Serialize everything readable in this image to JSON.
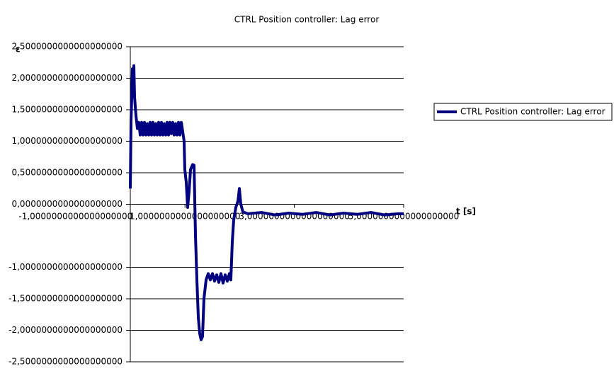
{
  "chart_data": {
    "type": "line",
    "title": "CTRL Position controller: Lag error",
    "y_label": "ε",
    "x_label": "t [s]",
    "x": [
      0,
      0.013,
      0.026,
      0.039,
      0.052,
      0.065,
      0.078,
      0.104,
      0.13,
      0.155,
      0.181,
      0.207,
      0.233,
      0.259,
      0.285,
      0.311,
      0.337,
      0.363,
      0.389,
      0.415,
      0.44,
      0.466,
      0.492,
      0.518,
      0.544,
      0.57,
      0.596,
      0.622,
      0.648,
      0.674,
      0.699,
      0.725,
      0.751,
      0.777,
      0.803,
      0.829,
      0.855,
      0.881,
      0.907,
      0.933,
      0.959,
      0.984,
      0.997,
      1.023,
      1.049,
      1.075,
      1.101,
      1.14,
      1.166,
      1.192,
      1.218,
      1.244,
      1.269,
      1.295,
      1.321,
      1.347,
      1.386,
      1.425,
      1.464,
      1.503,
      1.541,
      1.58,
      1.619,
      1.658,
      1.697,
      1.736,
      1.775,
      1.813,
      1.839,
      1.865,
      1.891,
      1.93,
      1.969,
      1.995,
      2.021,
      2.06,
      2.15,
      2.4,
      2.65,
      2.9,
      3.15,
      3.4,
      3.65,
      3.9,
      4.15,
      4.4,
      4.65,
      4.9,
      5
    ],
    "series": [
      {
        "name": "CTRL Position controller: Lag error",
        "color": "#000080",
        "values": [
          0.25,
          1.3,
          1.7,
          2.15,
          1.8,
          2.2,
          1.7,
          1.4,
          1.2,
          1.3,
          1.1,
          1.3,
          1.1,
          1.3,
          1.1,
          1.28,
          1.1,
          1.3,
          1.1,
          1.3,
          1.1,
          1.28,
          1.1,
          1.3,
          1.1,
          1.3,
          1.1,
          1.28,
          1.1,
          1.3,
          1.1,
          1.3,
          1.12,
          1.3,
          1.1,
          1.28,
          1.1,
          1.3,
          1.1,
          1.3,
          1.15,
          1.0,
          0.55,
          0.35,
          -0.05,
          0.2,
          0.55,
          0.63,
          0.62,
          -0.5,
          -1.2,
          -1.8,
          -2.05,
          -2.15,
          -2.1,
          -1.5,
          -1.2,
          -1.1,
          -1.2,
          -1.1,
          -1.22,
          -1.12,
          -1.24,
          -1.1,
          -1.25,
          -1.12,
          -1.22,
          -1.1,
          -1.2,
          -0.6,
          -0.25,
          -0.05,
          0.05,
          0.25,
          0.0,
          -0.12,
          -0.15,
          -0.13,
          -0.17,
          -0.14,
          -0.16,
          -0.13,
          -0.17,
          -0.14,
          -0.16,
          -0.13,
          -0.17,
          -0.15,
          -0.15
        ]
      }
    ],
    "xlim": [
      0,
      5
    ],
    "xticks": [
      {
        "value": -1,
        "label": "-1,0000000000000000000"
      },
      {
        "value": 1,
        "label": "1,0000000000000000000"
      },
      {
        "value": 3,
        "label": "3,0000000000000000000"
      },
      {
        "value": 5,
        "label": "5,0000000000000000000"
      }
    ],
    "ylim": [
      -2.5,
      2.5
    ],
    "yticks": [
      {
        "value": 2.5,
        "label": "2,5000000000000000000"
      },
      {
        "value": 2,
        "label": "2,0000000000000000000"
      },
      {
        "value": 1.5,
        "label": "1,5000000000000000000"
      },
      {
        "value": 1,
        "label": "1,0000000000000000000"
      },
      {
        "value": 0.5,
        "label": "0,5000000000000000000"
      },
      {
        "value": 0,
        "label": "0,0000000000000000000"
      },
      {
        "value": -1,
        "label": "-1,0000000000000000000"
      },
      {
        "value": -1.5,
        "label": "-1,5000000000000000000"
      },
      {
        "value": -2,
        "label": "-2,0000000000000000000"
      },
      {
        "value": -2.5,
        "label": "-2,5000000000000000000"
      }
    ],
    "grid": true,
    "legend": "right"
  }
}
